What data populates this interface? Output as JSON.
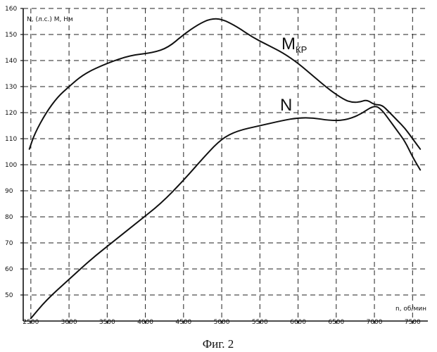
{
  "chart_data": {
    "type": "line",
    "xlabel": "n, об/мин",
    "ylabel": "N, (л.с.)  M, Нм",
    "caption": "Фиг. 2",
    "xlim": [
      2400,
      7700
    ],
    "ylim": [
      40,
      160
    ],
    "x_ticks": [
      2500,
      3000,
      3500,
      4000,
      4500,
      5000,
      5500,
      6000,
      6500,
      7000,
      7500
    ],
    "y_ticks": [
      50,
      60,
      70,
      80,
      90,
      100,
      110,
      120,
      130,
      140,
      150,
      160
    ],
    "grid": true,
    "series": [
      {
        "name": "M",
        "name_sub": "КР",
        "x": [
          2480,
          2550,
          2700,
          2850,
          3000,
          3200,
          3500,
          3800,
          4100,
          4300,
          4500,
          4700,
          4850,
          5000,
          5200,
          5400,
          5600,
          5800,
          6000,
          6200,
          6400,
          6600,
          6700,
          6800,
          6900,
          7000,
          7100,
          7200,
          7300,
          7400,
          7500,
          7600
        ],
        "values": [
          106,
          112,
          120,
          126,
          130,
          135,
          139,
          142,
          143,
          145,
          150,
          154,
          156,
          156,
          153,
          149,
          146,
          143,
          139,
          134,
          129,
          125,
          124,
          124,
          125,
          123,
          123,
          120,
          117,
          114,
          110,
          106
        ]
      },
      {
        "name": "N",
        "x": [
          2500,
          2700,
          3000,
          3300,
          3600,
          3900,
          4200,
          4500,
          4800,
          5000,
          5200,
          5500,
          5800,
          6000,
          6200,
          6400,
          6600,
          6800,
          7000,
          7100,
          7200,
          7300,
          7400,
          7500,
          7600
        ],
        "values": [
          41,
          48,
          56,
          64,
          71,
          78,
          85,
          94,
          104,
          110,
          113,
          115,
          117,
          118,
          118,
          117,
          117,
          119,
          123,
          121,
          117,
          113,
          109,
          103,
          98
        ]
      }
    ]
  }
}
